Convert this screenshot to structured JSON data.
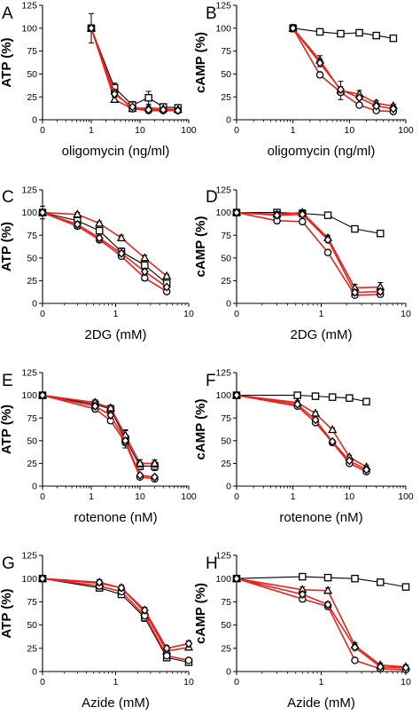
{
  "chart_data": [
    {
      "panel": "A",
      "type": "line",
      "ylabel": "ATP (%)",
      "xlabel": "oligomycin (ng/ml)",
      "xscale": "log-with-zero",
      "xticks": [
        "0",
        "1",
        "10",
        "100"
      ],
      "xlim": [
        0.1,
        100
      ],
      "ylim": [
        0,
        125
      ],
      "yticks": [
        "0",
        "25",
        "50",
        "75",
        "100",
        "125"
      ],
      "series": [
        {
          "marker": "square",
          "color": "#000000",
          "x": [
            1,
            3,
            7,
            15,
            30,
            60
          ],
          "y": [
            100,
            35,
            16,
            24,
            14,
            13
          ],
          "err": [
            16,
            5,
            4,
            7,
            2,
            2
          ]
        },
        {
          "marker": "triangle",
          "color": "#e8231f",
          "x": [
            1,
            3,
            7,
            15,
            30,
            60
          ],
          "y": [
            100,
            22,
            12,
            13,
            12,
            11
          ],
          "err": [
            0,
            3,
            2,
            2,
            1,
            1
          ]
        },
        {
          "marker": "circle",
          "color": "#e8231f",
          "x": [
            1,
            3,
            7,
            15,
            30,
            60
          ],
          "y": [
            100,
            30,
            12,
            10,
            10,
            10
          ],
          "err": [
            0,
            3,
            2,
            2,
            1,
            1
          ]
        },
        {
          "marker": "diamond",
          "color": "#e8231f",
          "x": [
            1,
            3,
            7,
            15,
            30,
            60
          ],
          "y": [
            100,
            28,
            14,
            11,
            11,
            10
          ],
          "err": [
            0,
            3,
            2,
            2,
            1,
            1
          ]
        }
      ]
    },
    {
      "panel": "B",
      "type": "line",
      "ylabel": "cAMP (%)",
      "xlabel": "oligomycin (ng/ml)",
      "xscale": "log-with-zero",
      "xticks": [
        "0",
        "1",
        "10",
        "100"
      ],
      "xlim": [
        0.1,
        100
      ],
      "ylim": [
        0,
        125
      ],
      "yticks": [
        "0",
        "25",
        "50",
        "75",
        "100",
        "125"
      ],
      "series": [
        {
          "marker": "square",
          "color": "#000000",
          "x": [
            1,
            3,
            7,
            15,
            30,
            60
          ],
          "y": [
            100,
            96,
            94,
            95,
            92,
            89
          ],
          "err": [
            4,
            2,
            2,
            2,
            2,
            2
          ]
        },
        {
          "marker": "triangle",
          "color": "#e8231f",
          "x": [
            1,
            3,
            7,
            15,
            30,
            60
          ],
          "y": [
            100,
            65,
            32,
            28,
            18,
            15
          ],
          "err": [
            3,
            5,
            10,
            4,
            3,
            2
          ]
        },
        {
          "marker": "circle",
          "color": "#e8231f",
          "x": [
            1,
            3,
            7,
            15,
            30,
            60
          ],
          "y": [
            100,
            49,
            30,
            16,
            10,
            9
          ],
          "err": [
            3,
            3,
            3,
            2,
            2,
            2
          ]
        },
        {
          "marker": "diamond",
          "color": "#e8231f",
          "x": [
            1,
            3,
            7,
            15,
            30,
            60
          ],
          "y": [
            100,
            62,
            33,
            24,
            15,
            12
          ],
          "err": [
            3,
            4,
            3,
            2,
            2,
            2
          ]
        }
      ]
    },
    {
      "panel": "C",
      "type": "line",
      "ylabel": "ATP (%)",
      "xlabel": "2DG (mM)",
      "xscale": "log-with-zero",
      "xticks": [
        "0",
        "1",
        "10"
      ],
      "xlim": [
        0.1,
        10
      ],
      "ylim": [
        0,
        125
      ],
      "yticks": [
        "0",
        "25",
        "50",
        "75",
        "100",
        "125"
      ],
      "series": [
        {
          "marker": "square",
          "color": "#000000",
          "x": [
            0.1,
            0.3,
            0.6,
            1.2,
            2.5,
            5
          ],
          "y": [
            100,
            91,
            80,
            57,
            42,
            22
          ],
          "err": [
            7,
            3,
            3,
            4,
            3,
            2
          ]
        },
        {
          "marker": "triangle",
          "color": "#e8231f",
          "x": [
            0.1,
            0.3,
            0.6,
            1.2,
            2.5,
            5
          ],
          "y": [
            100,
            98,
            88,
            72,
            50,
            30
          ],
          "err": [
            3,
            2,
            2,
            3,
            3,
            2
          ]
        },
        {
          "marker": "circle",
          "color": "#e8231f",
          "x": [
            0.1,
            0.3,
            0.6,
            1.2,
            2.5,
            5
          ],
          "y": [
            100,
            85,
            70,
            52,
            28,
            13
          ],
          "err": [
            3,
            3,
            3,
            3,
            3,
            2
          ]
        },
        {
          "marker": "diamond",
          "color": "#e8231f",
          "x": [
            0.1,
            0.3,
            0.6,
            1.2,
            2.5,
            5
          ],
          "y": [
            100,
            87,
            72,
            55,
            35,
            18
          ],
          "err": [
            3,
            3,
            3,
            3,
            3,
            2
          ]
        }
      ]
    },
    {
      "panel": "D",
      "type": "line",
      "ylabel": "cAMP (%)",
      "xlabel": "2DG (mM)",
      "xscale": "log-with-zero",
      "xticks": [
        "0",
        "1",
        "10"
      ],
      "xlim": [
        0.1,
        10
      ],
      "ylim": [
        0,
        125
      ],
      "yticks": [
        "0",
        "25",
        "50",
        "75",
        "100",
        "125"
      ],
      "series": [
        {
          "marker": "square",
          "color": "#000000",
          "x": [
            0.1,
            0.3,
            0.6,
            1.2,
            2.5,
            5
          ],
          "y": [
            100,
            100,
            99,
            97,
            82,
            77
          ],
          "err": [
            3,
            2,
            2,
            2,
            2,
            2
          ]
        },
        {
          "marker": "triangle",
          "color": "#e8231f",
          "x": [
            0.1,
            0.3,
            0.6,
            1.2,
            2.5,
            5
          ],
          "y": [
            100,
            98,
            100,
            72,
            17,
            18
          ],
          "err": [
            3,
            3,
            3,
            3,
            4,
            5
          ]
        },
        {
          "marker": "circle",
          "color": "#e8231f",
          "x": [
            0.1,
            0.3,
            0.6,
            1.2,
            2.5,
            5
          ],
          "y": [
            100,
            91,
            90,
            56,
            9,
            10
          ],
          "err": [
            3,
            3,
            3,
            2,
            2,
            3
          ]
        },
        {
          "marker": "diamond",
          "color": "#e8231f",
          "x": [
            0.1,
            0.3,
            0.6,
            1.2,
            2.5,
            5
          ],
          "y": [
            100,
            97,
            98,
            70,
            12,
            13
          ],
          "err": [
            3,
            3,
            3,
            3,
            3,
            3
          ]
        }
      ]
    },
    {
      "panel": "E",
      "type": "line",
      "ylabel": "ATP (%)",
      "xlabel": "rotenone (nM)",
      "xscale": "log-with-zero",
      "xticks": [
        "0",
        "1",
        "10",
        "100"
      ],
      "xlim": [
        0.1,
        100
      ],
      "ylim": [
        0,
        125
      ],
      "yticks": [
        "0",
        "25",
        "50",
        "75",
        "100",
        "125"
      ],
      "series": [
        {
          "marker": "square",
          "color": "#000000",
          "x": [
            0.1,
            1.2,
            2.5,
            5,
            10,
            20
          ],
          "y": [
            100,
            90,
            85,
            52,
            22,
            22
          ],
          "err": [
            2,
            3,
            3,
            10,
            4,
            5
          ]
        },
        {
          "marker": "triangle",
          "color": "#e8231f",
          "x": [
            0.1,
            1.2,
            2.5,
            5,
            10,
            20
          ],
          "y": [
            100,
            92,
            86,
            56,
            25,
            25
          ],
          "err": [
            2,
            3,
            3,
            5,
            4,
            4
          ]
        },
        {
          "marker": "circle",
          "color": "#e8231f",
          "x": [
            0.1,
            1.2,
            2.5,
            5,
            10,
            20
          ],
          "y": [
            100,
            85,
            72,
            48,
            10,
            8
          ],
          "err": [
            2,
            3,
            3,
            3,
            2,
            2
          ]
        },
        {
          "marker": "diamond",
          "color": "#e8231f",
          "x": [
            0.1,
            1.2,
            2.5,
            5,
            10,
            20
          ],
          "y": [
            100,
            88,
            78,
            50,
            12,
            10
          ],
          "err": [
            2,
            3,
            3,
            3,
            2,
            2
          ]
        }
      ]
    },
    {
      "panel": "F",
      "type": "line",
      "ylabel": "cAMP (%)",
      "xlabel": "rotenone (nM)",
      "xscale": "log-with-zero",
      "xticks": [
        "0",
        "1",
        "10",
        "100"
      ],
      "xlim": [
        0.1,
        100
      ],
      "ylim": [
        0,
        125
      ],
      "yticks": [
        "0",
        "25",
        "50",
        "75",
        "100",
        "125"
      ],
      "series": [
        {
          "marker": "square",
          "color": "#000000",
          "x": [
            0.1,
            1.2,
            2.5,
            5,
            10,
            20
          ],
          "y": [
            100,
            100,
            99,
            98,
            97,
            93
          ],
          "err": [
            2,
            2,
            2,
            2,
            2,
            2
          ]
        },
        {
          "marker": "triangle",
          "color": "#e8231f",
          "x": [
            0.1,
            1.2,
            2.5,
            5,
            10,
            20
          ],
          "y": [
            100,
            92,
            80,
            62,
            32,
            21
          ],
          "err": [
            2,
            2,
            2,
            2,
            2,
            2
          ]
        },
        {
          "marker": "circle",
          "color": "#e8231f",
          "x": [
            0.1,
            1.2,
            2.5,
            5,
            10,
            20
          ],
          "y": [
            100,
            88,
            70,
            48,
            25,
            16
          ],
          "err": [
            2,
            2,
            2,
            2,
            2,
            2
          ]
        },
        {
          "marker": "diamond",
          "color": "#e8231f",
          "x": [
            0.1,
            1.2,
            2.5,
            5,
            10,
            20
          ],
          "y": [
            100,
            90,
            73,
            49,
            28,
            18
          ],
          "err": [
            2,
            2,
            2,
            2,
            2,
            2
          ]
        }
      ]
    },
    {
      "panel": "G",
      "type": "line",
      "ylabel": "ATP (%)",
      "xlabel": "Azide (mM)",
      "xscale": "log-with-zero",
      "xticks": [
        "0",
        "1",
        "10"
      ],
      "xlim": [
        0.1,
        10
      ],
      "ylim": [
        0,
        125
      ],
      "yticks": [
        "0",
        "25",
        "50",
        "75",
        "100",
        "125"
      ],
      "series": [
        {
          "marker": "square",
          "color": "#000000",
          "x": [
            0.1,
            0.6,
            1.2,
            2.5,
            5,
            10
          ],
          "y": [
            100,
            90,
            83,
            58,
            15,
            10
          ],
          "err": [
            2,
            3,
            3,
            4,
            2,
            2
          ]
        },
        {
          "marker": "triangle",
          "color": "#e8231f",
          "x": [
            0.1,
            0.6,
            1.2,
            2.5,
            5,
            10
          ],
          "y": [
            100,
            95,
            90,
            64,
            22,
            26
          ],
          "err": [
            2,
            3,
            3,
            3,
            3,
            3
          ]
        },
        {
          "marker": "circle",
          "color": "#e8231f",
          "x": [
            0.1,
            0.6,
            1.2,
            2.5,
            5,
            10
          ],
          "y": [
            100,
            92,
            86,
            60,
            17,
            12
          ],
          "err": [
            2,
            3,
            3,
            3,
            2,
            2
          ]
        },
        {
          "marker": "diamond",
          "color": "#e8231f",
          "x": [
            0.1,
            0.6,
            1.2,
            2.5,
            5,
            10
          ],
          "y": [
            100,
            96,
            90,
            66,
            25,
            30
          ],
          "err": [
            2,
            3,
            3,
            3,
            3,
            3
          ]
        }
      ]
    },
    {
      "panel": "H",
      "type": "line",
      "ylabel": "cAMP (%)",
      "xlabel": "Azide (mM)",
      "xscale": "log-with-zero",
      "xticks": [
        "0",
        "1",
        "10"
      ],
      "xlim": [
        0.1,
        10
      ],
      "ylim": [
        0,
        125
      ],
      "yticks": [
        "0",
        "25",
        "50",
        "75",
        "100",
        "125"
      ],
      "series": [
        {
          "marker": "square",
          "color": "#000000",
          "x": [
            0.1,
            0.6,
            1.2,
            2.5,
            5,
            10
          ],
          "y": [
            100,
            102,
            101,
            100,
            96,
            91
          ],
          "err": [
            3,
            2,
            2,
            2,
            2,
            2
          ]
        },
        {
          "marker": "triangle",
          "color": "#e8231f",
          "x": [
            0.1,
            0.6,
            1.2,
            2.5,
            5,
            10
          ],
          "y": [
            100,
            88,
            87,
            28,
            7,
            5
          ],
          "err": [
            3,
            3,
            3,
            3,
            2,
            2
          ]
        },
        {
          "marker": "circle",
          "color": "#e8231f",
          "x": [
            0.1,
            0.6,
            1.2,
            2.5,
            5,
            10
          ],
          "y": [
            100,
            78,
            70,
            12,
            3,
            2
          ],
          "err": [
            3,
            3,
            3,
            2,
            2,
            2
          ]
        },
        {
          "marker": "diamond",
          "color": "#e8231f",
          "x": [
            0.1,
            0.6,
            1.2,
            2.5,
            5,
            10
          ],
          "y": [
            100,
            83,
            72,
            26,
            5,
            4
          ],
          "err": [
            3,
            3,
            3,
            3,
            2,
            2
          ]
        }
      ]
    }
  ]
}
